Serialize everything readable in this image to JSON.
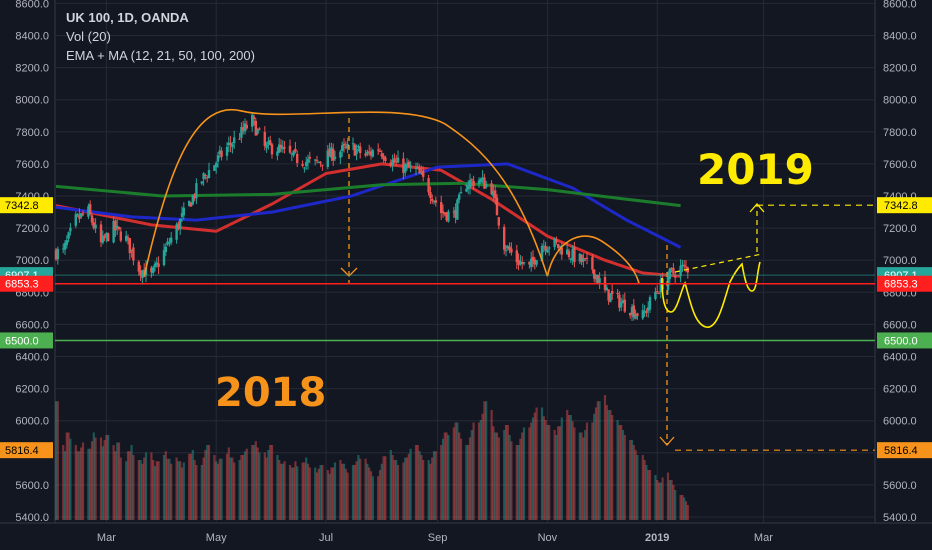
{
  "header": {
    "symbol_line": "UK 100, 1D, OANDA",
    "volume_line": "Vol (20)",
    "ma_line": "EMA + MA (12, 21, 50, 100, 200)"
  },
  "annotations": {
    "year_2018": "2018",
    "year_2019": "2019",
    "year_2018_color": "#f7931a",
    "year_2019_color": "#ffeb00"
  },
  "colors": {
    "background": "#131722",
    "grid": "#262a36",
    "up": "#26a69a",
    "down": "#ef5350",
    "ma_red": "#d32f2f",
    "ma_blue": "#1e28c8",
    "ma_green": "#1b7d2c",
    "ma_thin": "#5b9c8e",
    "drawing_orange": "#f7931a",
    "drawing_yellow": "#ffeb00",
    "support_red": "#ff1f1f",
    "support_green": "#4caf50",
    "axis_text": "#b2b5be"
  },
  "chart_data": {
    "type": "line",
    "title": "UK 100, 1D, OANDA",
    "xlabel": "",
    "ylabel": "",
    "x_ticks": [
      "Mar",
      "May",
      "Jul",
      "Sep",
      "Nov",
      "2019",
      "Mar"
    ],
    "y_ticks": [
      5400,
      5600,
      5800,
      6000,
      6200,
      6400,
      6600,
      6800,
      7000,
      7200,
      7400,
      7600,
      7800,
      8000,
      8200,
      8400,
      8600
    ],
    "ylim": [
      5370,
      8600
    ],
    "grid": true,
    "price_labels": [
      {
        "value": 7342.8,
        "text": "7342.8",
        "color": "#ffeb00"
      },
      {
        "value": 6907.1,
        "text": "6907.1",
        "color": "#26a69a"
      },
      {
        "value": 6853.3,
        "text": "6853.3",
        "color": "#ff1f1f"
      },
      {
        "value": 6500.0,
        "text": "6500.0",
        "color": "#4caf50"
      },
      {
        "value": 5816.4,
        "text": "5816.4",
        "color": "#f7931a"
      }
    ],
    "price_path": [
      [
        "2018-02-05",
        7050
      ],
      [
        "2018-02-12",
        7250
      ],
      [
        "2018-02-19",
        7300
      ],
      [
        "2018-02-26",
        7100
      ],
      [
        "2018-03-05",
        7200
      ],
      [
        "2018-03-12",
        7130
      ],
      [
        "2018-03-19",
        6950
      ],
      [
        "2018-03-26",
        6900
      ],
      [
        "2018-04-02",
        7050
      ],
      [
        "2018-04-09",
        7200
      ],
      [
        "2018-04-16",
        7350
      ],
      [
        "2018-04-23",
        7500
      ],
      [
        "2018-04-30",
        7600
      ],
      [
        "2018-05-07",
        7700
      ],
      [
        "2018-05-14",
        7780
      ],
      [
        "2018-05-21",
        7870
      ],
      [
        "2018-05-28",
        7700
      ],
      [
        "2018-06-04",
        7700
      ],
      [
        "2018-06-11",
        7650
      ],
      [
        "2018-06-18",
        7620
      ],
      [
        "2018-06-25",
        7600
      ],
      [
        "2018-07-02",
        7650
      ],
      [
        "2018-07-09",
        7680
      ],
      [
        "2018-07-16",
        7700
      ],
      [
        "2018-07-23",
        7650
      ],
      [
        "2018-07-30",
        7700
      ],
      [
        "2018-08-06",
        7620
      ],
      [
        "2018-08-13",
        7580
      ],
      [
        "2018-08-20",
        7560
      ],
      [
        "2018-08-27",
        7450
      ],
      [
        "2018-09-03",
        7300
      ],
      [
        "2018-09-10",
        7280
      ],
      [
        "2018-09-17",
        7480
      ],
      [
        "2018-09-24",
        7500
      ],
      [
        "2018-10-01",
        7450
      ],
      [
        "2018-10-08",
        7100
      ],
      [
        "2018-10-15",
        7000
      ],
      [
        "2018-10-22",
        6950
      ],
      [
        "2018-10-29",
        7100
      ],
      [
        "2018-11-05",
        7100
      ],
      [
        "2018-11-12",
        7050
      ],
      [
        "2018-11-19",
        7000
      ],
      [
        "2018-11-26",
        6950
      ],
      [
        "2018-12-03",
        6800
      ],
      [
        "2018-12-10",
        6750
      ],
      [
        "2018-12-17",
        6700
      ],
      [
        "2018-12-24",
        6650
      ],
      [
        "2018-12-31",
        6800
      ],
      [
        "2019-01-07",
        6900
      ],
      [
        "2019-01-14",
        6950
      ]
    ],
    "series": [
      {
        "name": "MA (red)",
        "color": "#d32f2f",
        "points": [
          [
            "2018-02-01",
            7340
          ],
          [
            "2018-03-26",
            7220
          ],
          [
            "2018-05-01",
            7180
          ],
          [
            "2018-06-01",
            7350
          ],
          [
            "2018-07-01",
            7540
          ],
          [
            "2018-08-01",
            7600
          ],
          [
            "2018-09-03",
            7560
          ],
          [
            "2018-10-01",
            7380
          ],
          [
            "2018-11-01",
            7150
          ],
          [
            "2018-12-03",
            7000
          ],
          [
            "2018-12-24",
            6920
          ],
          [
            "2019-01-14",
            6900
          ]
        ]
      },
      {
        "name": "MA (blue)",
        "color": "#1e28c8",
        "points": [
          [
            "2018-02-01",
            7330
          ],
          [
            "2018-03-15",
            7270
          ],
          [
            "2018-04-20",
            7250
          ],
          [
            "2018-06-01",
            7300
          ],
          [
            "2018-07-15",
            7400
          ],
          [
            "2018-09-01",
            7580
          ],
          [
            "2018-10-10",
            7600
          ],
          [
            "2018-11-15",
            7450
          ],
          [
            "2018-12-15",
            7250
          ],
          [
            "2019-01-14",
            7080
          ]
        ]
      },
      {
        "name": "MA (green)",
        "color": "#1b7d2c",
        "points": [
          [
            "2018-02-01",
            7460
          ],
          [
            "2018-04-01",
            7400
          ],
          [
            "2018-06-01",
            7410
          ],
          [
            "2018-08-01",
            7470
          ],
          [
            "2018-09-15",
            7480
          ],
          [
            "2018-11-01",
            7440
          ],
          [
            "2018-12-15",
            7380
          ],
          [
            "2019-01-14",
            7340
          ]
        ]
      }
    ],
    "volume": {
      "axis_max": 100,
      "values": [
        95,
        60,
        55,
        70,
        65,
        60,
        55,
        58,
        62,
        57,
        63,
        70,
        66,
        59,
        64,
        68,
        60,
        55,
        62,
        50,
        47,
        55,
        60,
        52,
        48,
        45,
        50,
        54,
        48,
        43,
        47,
        52,
        55,
        49,
        45,
        50,
        47,
        42,
        46,
        53,
        56,
        48,
        44,
        50,
        56,
        60,
        52,
        47,
        45,
        49,
        53,
        58,
        50,
        46,
        48,
        52,
        55,
        57,
        60,
        63,
        58,
        54,
        50,
        56,
        60,
        52,
        48,
        45,
        47,
        44,
        42,
        47,
        43,
        46,
        50,
        45,
        42,
        38,
        41,
        44,
        40,
        37,
        42,
        46,
        48,
        45,
        41,
        38,
        44,
        47,
        52,
        49,
        45,
        42,
        39,
        35,
        40,
        45,
        51,
        56,
        52,
        48,
        44,
        46,
        50,
        53,
        57,
        60,
        55,
        52,
        48,
        45,
        50,
        55,
        60,
        65,
        70,
        68,
        74,
        78,
        70,
        65,
        60,
        66,
        72,
        78,
        80,
        85,
        95,
        88,
        75,
        70,
        66,
        72,
        76,
        68,
        63,
        60,
        65,
        70,
        74,
        78,
        82,
        86,
        90,
        83,
        80,
        76,
        72,
        68,
        75,
        82,
        88,
        84,
        79,
        74,
        70,
        66,
        72,
        78,
        85,
        90,
        95,
        100,
        92,
        88,
        84,
        80,
        76,
        72,
        68,
        64,
        60,
        56,
        52,
        48,
        44,
        40,
        36,
        32,
        30,
        34,
        38,
        32,
        28,
        24,
        20,
        18,
        15,
        12
      ]
    }
  }
}
